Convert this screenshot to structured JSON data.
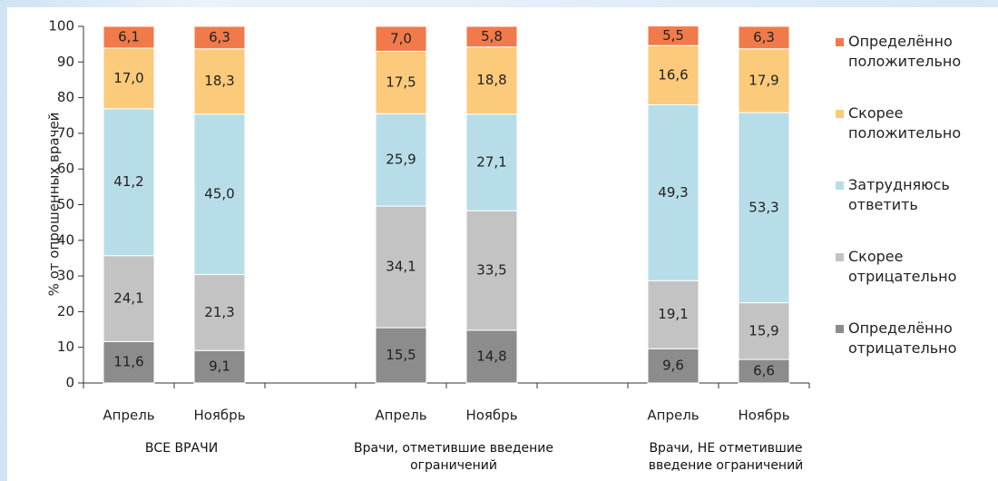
{
  "chart_data": {
    "type": "stacked_bar",
    "y_label": "% от опрошенных врачей",
    "categories": [
      "Апрель",
      "Ноябрь",
      null,
      "Апрель",
      "Ноябрь",
      null,
      "Апрель",
      "Ноябрь"
    ],
    "groups": [
      {
        "label": "ВСЕ ВРАЧИ"
      },
      {
        "label": "Врачи, отметившие введение ограничений"
      },
      {
        "label": "Врачи, НЕ отметившие введение ограничений"
      }
    ],
    "series": [
      {
        "name": "Определённо отрицательно",
        "color": "#8c8c8c",
        "values": [
          11.6,
          9.1,
          null,
          15.5,
          14.8,
          null,
          9.6,
          6.6
        ],
        "value_labels": [
          "11,6",
          "9,1",
          null,
          "15,5",
          "14,8",
          null,
          "9,6",
          "6,6"
        ]
      },
      {
        "name": "Скорее отрицательно",
        "color": "#c3c3c3",
        "values": [
          24.1,
          21.3,
          null,
          34.1,
          33.5,
          null,
          19.1,
          15.9
        ],
        "value_labels": [
          "24,1",
          "21,3",
          null,
          "34,1",
          "33,5",
          null,
          "19,1",
          "15,9"
        ]
      },
      {
        "name": "Затрудняюсь ответить",
        "color": "#b7dde8",
        "values": [
          41.2,
          45.0,
          null,
          25.9,
          27.1,
          null,
          49.3,
          53.3
        ],
        "value_labels": [
          "41,2",
          "45,0",
          null,
          "25,9",
          "27,1",
          null,
          "49,3",
          "53,3"
        ]
      },
      {
        "name": "Скорее положительно",
        "color": "#fbca7a",
        "values": [
          17.0,
          18.3,
          null,
          17.5,
          18.8,
          null,
          16.6,
          17.9
        ],
        "value_labels": [
          "17,0",
          "18,3",
          null,
          "17,5",
          "18,8",
          null,
          "16,6",
          "17,9"
        ]
      },
      {
        "name": "Определённо положительно",
        "color": "#f07a4a",
        "values": [
          6.1,
          6.3,
          null,
          7.0,
          5.8,
          null,
          5.5,
          6.3
        ],
        "value_labels": [
          "6,1",
          "6,3",
          null,
          "7,0",
          "5,8",
          null,
          "5,5",
          "6,3"
        ]
      }
    ],
    "ylim": [
      0,
      100
    ],
    "yticks": [
      0,
      10,
      20,
      30,
      40,
      50,
      60,
      70,
      80,
      90,
      100
    ],
    "legend": "right"
  }
}
